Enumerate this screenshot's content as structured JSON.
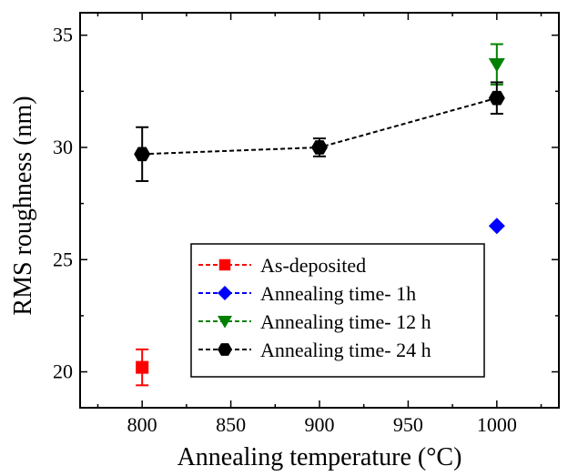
{
  "chart_data": {
    "type": "scatter",
    "xlabel": "Annealing temperature (°C)",
    "ylabel": "RMS roughness (nm)",
    "xlim": [
      765,
      1035
    ],
    "ylim": [
      18.4,
      36.0
    ],
    "x_ticks": [
      800,
      850,
      900,
      950,
      1000
    ],
    "y_ticks": [
      20,
      25,
      30,
      35
    ],
    "grid": false,
    "legend_position": "bottom-right",
    "series": [
      {
        "name": "As-deposited",
        "color": "#ff0000",
        "marker": "square",
        "dashed_line": false,
        "points": [
          {
            "x": 800,
            "y": 20.2,
            "err": 0.8
          }
        ]
      },
      {
        "name": "Annealing time- 1h",
        "color": "#0000ff",
        "marker": "diamond",
        "dashed_line": false,
        "points": [
          {
            "x": 1000,
            "y": 26.5,
            "err": 0
          }
        ]
      },
      {
        "name": "Annealing time- 12 h",
        "color": "#008000",
        "marker": "triangle-down",
        "dashed_line": false,
        "points": [
          {
            "x": 1000,
            "y": 33.7,
            "err": 0.9
          }
        ]
      },
      {
        "name": "Annealing time- 24 h",
        "color": "#000000",
        "marker": "hexagon",
        "dashed_line": true,
        "points": [
          {
            "x": 800,
            "y": 29.7,
            "err": 1.2
          },
          {
            "x": 900,
            "y": 30.0,
            "err": 0.4
          },
          {
            "x": 1000,
            "y": 32.2,
            "err": 0.7
          }
        ]
      }
    ]
  }
}
